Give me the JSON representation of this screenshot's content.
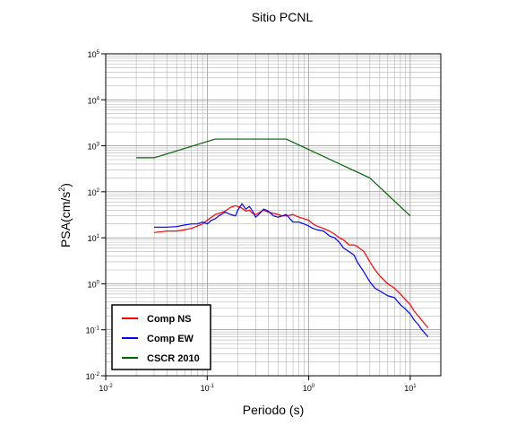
{
  "chart_data": {
    "type": "line",
    "title": "Sitio PCNL",
    "xlabel": "Periodo (s)",
    "ylabel_base": "PSA(cm/s",
    "ylabel_sup": "2",
    "ylabel_close": ")",
    "xscale": "log",
    "yscale": "log",
    "xlim": [
      0.01,
      20
    ],
    "ylim": [
      0.01,
      100000
    ],
    "grid": true,
    "legend_position": "bottom-left",
    "x_ticks": [
      {
        "base": "10",
        "exp": "-2",
        "value": 0.01
      },
      {
        "base": "10",
        "exp": "-1",
        "value": 0.1
      },
      {
        "base": "10",
        "exp": "0",
        "value": 1
      },
      {
        "base": "10",
        "exp": "1",
        "value": 10
      }
    ],
    "y_ticks": [
      {
        "base": "10",
        "exp": "-2",
        "value": 0.01
      },
      {
        "base": "10",
        "exp": "-1",
        "value": 0.1
      },
      {
        "base": "10",
        "exp": "0",
        "value": 1
      },
      {
        "base": "10",
        "exp": "1",
        "value": 10
      },
      {
        "base": "10",
        "exp": "2",
        "value": 100
      },
      {
        "base": "10",
        "exp": "3",
        "value": 1000
      },
      {
        "base": "10",
        "exp": "4",
        "value": 10000
      },
      {
        "base": "10",
        "exp": "5",
        "value": 100000
      }
    ],
    "series": [
      {
        "name": "Comp NS",
        "color": "#ff0000",
        "x": [
          0.03,
          0.035,
          0.04,
          0.05,
          0.06,
          0.07,
          0.08,
          0.09,
          0.1,
          0.11,
          0.12,
          0.13,
          0.15,
          0.17,
          0.19,
          0.2,
          0.22,
          0.24,
          0.26,
          0.28,
          0.3,
          0.33,
          0.36,
          0.4,
          0.45,
          0.5,
          0.55,
          0.6,
          0.7,
          0.8,
          0.9,
          1.0,
          1.1,
          1.2,
          1.4,
          1.6,
          1.8,
          2.0,
          2.2,
          2.5,
          2.8,
          3.0,
          3.5,
          4.0,
          4.5,
          5.0,
          6.0,
          7.0,
          8.0,
          9.0,
          10.0,
          11.0,
          12.0,
          13.0,
          15.0
        ],
        "values": [
          13,
          13.5,
          14,
          14,
          15,
          16,
          18,
          20,
          24,
          28,
          32,
          34,
          38,
          46,
          50,
          48,
          44,
          38,
          40,
          34,
          32,
          36,
          40,
          36,
          34,
          32,
          30,
          30,
          32,
          28,
          26,
          24,
          20,
          18,
          16,
          14,
          12,
          10,
          9,
          7,
          7,
          6.5,
          5,
          3,
          2,
          1.5,
          1.0,
          0.8,
          0.6,
          0.45,
          0.35,
          0.25,
          0.2,
          0.16,
          0.11
        ]
      },
      {
        "name": "Comp EW",
        "color": "#0000ff",
        "x": [
          0.03,
          0.035,
          0.04,
          0.05,
          0.06,
          0.07,
          0.08,
          0.09,
          0.1,
          0.11,
          0.12,
          0.13,
          0.15,
          0.17,
          0.19,
          0.2,
          0.22,
          0.24,
          0.26,
          0.28,
          0.3,
          0.33,
          0.36,
          0.4,
          0.45,
          0.5,
          0.55,
          0.6,
          0.7,
          0.8,
          0.9,
          1.0,
          1.1,
          1.2,
          1.4,
          1.6,
          1.8,
          2.0,
          2.2,
          2.5,
          2.8,
          3.0,
          3.5,
          4.0,
          4.5,
          5.0,
          6.0,
          7.0,
          8.0,
          9.0,
          10.0,
          11.0,
          12.0,
          13.0,
          15.0
        ],
        "values": [
          17,
          17,
          17,
          17.5,
          19,
          20,
          20,
          22,
          20,
          24,
          26,
          30,
          36,
          32,
          30,
          40,
          55,
          42,
          48,
          38,
          28,
          34,
          42,
          38,
          30,
          28,
          30,
          32,
          22,
          22,
          20,
          18,
          16,
          15,
          14,
          11,
          10,
          8,
          6,
          5,
          4.2,
          3,
          1.8,
          1.1,
          0.8,
          0.7,
          0.55,
          0.5,
          0.35,
          0.28,
          0.22,
          0.16,
          0.13,
          0.1,
          0.07
        ]
      },
      {
        "name": "CSCR 2010",
        "color": "#006400",
        "x": [
          0.02,
          0.03,
          0.12,
          0.6,
          4.0,
          10.0
        ],
        "values": [
          550,
          550,
          1400,
          1400,
          200,
          30
        ]
      }
    ]
  }
}
